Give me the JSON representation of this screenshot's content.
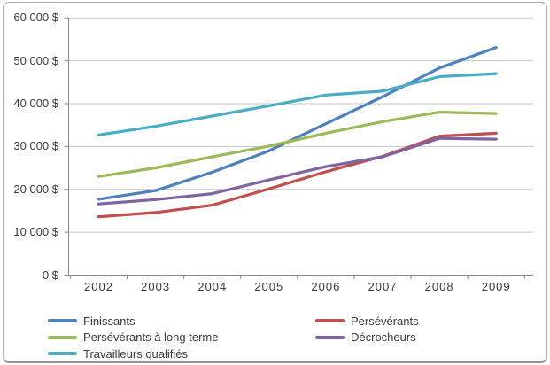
{
  "chart_data": {
    "type": "line",
    "title": "",
    "xlabel": "",
    "ylabel": "",
    "x": [
      2002,
      2003,
      2004,
      2005,
      2006,
      2007,
      2008,
      2009
    ],
    "x_tick_labels": [
      "2002",
      "2003",
      "2004",
      "2005",
      "2006",
      "2007",
      "2008",
      "2009"
    ],
    "ylim": [
      0,
      60000
    ],
    "ytick_step": 10000,
    "y_tick_labels": [
      "0 $",
      "10 000 $",
      "20 000 $",
      "30 000 $",
      "40 000 $",
      "50 000 $",
      "60 000 $"
    ],
    "grid": true,
    "legend_position": "bottom-two-columns",
    "series": [
      {
        "name": "Finissants",
        "color": "#4F81BD",
        "values": [
          17700,
          19700,
          24000,
          29000,
          35300,
          41600,
          48300,
          53100
        ]
      },
      {
        "name": "Persévérants",
        "color": "#C0504D",
        "values": [
          13600,
          14600,
          16300,
          20100,
          24100,
          27700,
          32400,
          33100
        ]
      },
      {
        "name": "Persévérants à long terme",
        "color": "#9BBB59",
        "values": [
          23000,
          25000,
          27600,
          30100,
          33100,
          35800,
          38000,
          37700
        ]
      },
      {
        "name": "Décrocheurs",
        "color": "#8064A2",
        "values": [
          16600,
          17600,
          19000,
          22200,
          25300,
          27600,
          31900,
          31700
        ]
      },
      {
        "name": "Travailleurs qualifiés",
        "color": "#4BACC6",
        "values": [
          32700,
          34700,
          37100,
          39500,
          42000,
          42900,
          46300,
          47000
        ]
      }
    ],
    "colors": {
      "gridline": "#c6c6c6",
      "axis": "#898989",
      "text": "#3a3a3a",
      "frame_border": "#ababab",
      "background": "#ffffff"
    }
  }
}
